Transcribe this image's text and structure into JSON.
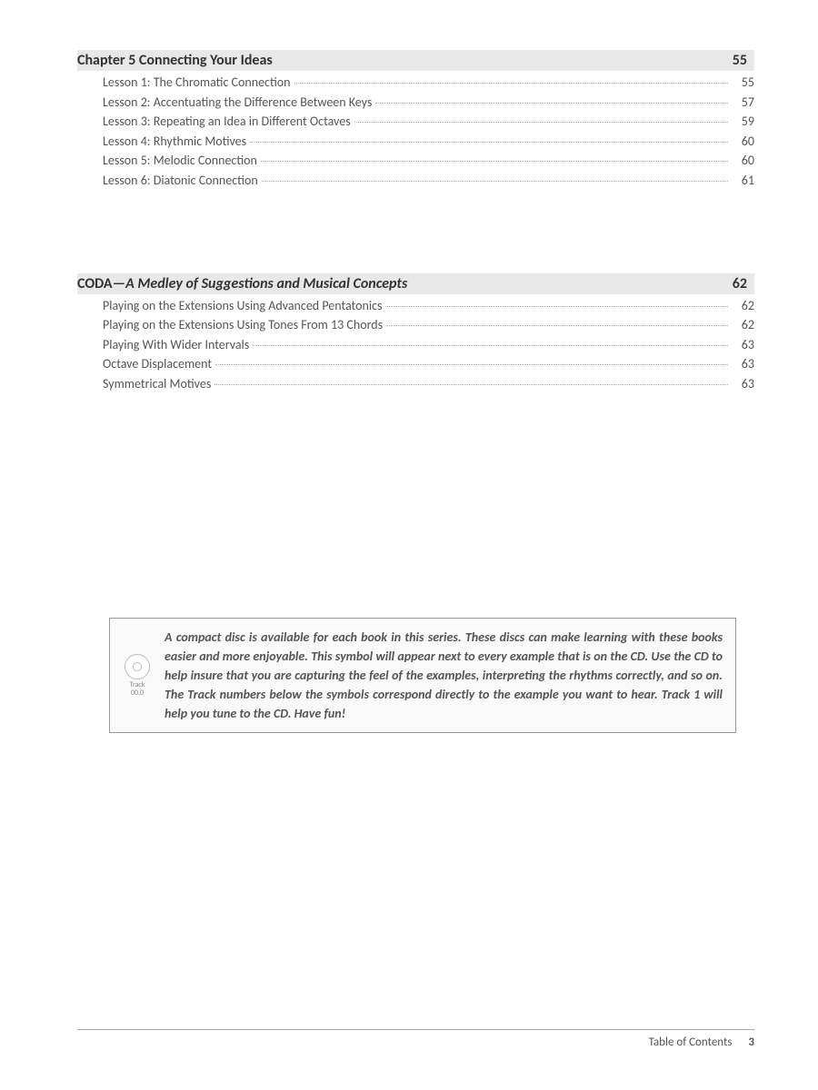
{
  "chapter5": {
    "title": "Chapter 5 Connecting Your Ideas",
    "page": "55",
    "items": [
      {
        "label": "Lesson 1: The Chromatic Connection",
        "page": "55"
      },
      {
        "label": "Lesson 2: Accentuating the Difference Between Keys",
        "page": "57"
      },
      {
        "label": "Lesson 3: Repeating an Idea in Different Octaves",
        "page": "59"
      },
      {
        "label": "Lesson 4: Rhythmic Motives",
        "page": "60"
      },
      {
        "label": "Lesson 5: Melodic Connection",
        "page": "60"
      },
      {
        "label": "Lesson 6: Diatonic Connection",
        "page": "61"
      }
    ]
  },
  "coda": {
    "title_bold": "CODA—",
    "title_italic": "A Medley of Suggestions and Musical Concepts",
    "page": "62",
    "items": [
      {
        "label": "Playing on the Extensions Using Advanced Pentatonics",
        "page": "62"
      },
      {
        "label": "Playing on the Extensions Using Tones From 13 Chords",
        "page": "62"
      },
      {
        "label": "Playing With Wider Intervals",
        "page": "63"
      },
      {
        "label": "Octave Displacement",
        "page": "63"
      },
      {
        "label": "Symmetrical Motives",
        "page": "63"
      }
    ]
  },
  "cdbox": {
    "track_label": "Track\n00.0",
    "text": "A compact disc is available for each book in this series. These discs can make learning with these books easier and more enjoyable. This symbol will appear next to every example that is on the CD. Use the CD to help insure that you are capturing the feel of the examples, interpreting the rhythms correctly, and so on. The Track numbers below the symbols correspond directly to the example you want to hear. Track 1 will help you tune to the CD. Have fun!"
  },
  "footer": {
    "label": "Table of Contents",
    "page": "3"
  },
  "colors": {
    "header_bg": "#e8e8e8",
    "text_primary": "#333333",
    "text_secondary": "#555555",
    "dots": "#aaaaaa",
    "box_border": "#999999",
    "box_bg": "#f9f9f9"
  },
  "typography": {
    "header_fontsize": 16,
    "item_fontsize": 14,
    "cdtext_fontsize": 14,
    "footer_fontsize": 13
  }
}
